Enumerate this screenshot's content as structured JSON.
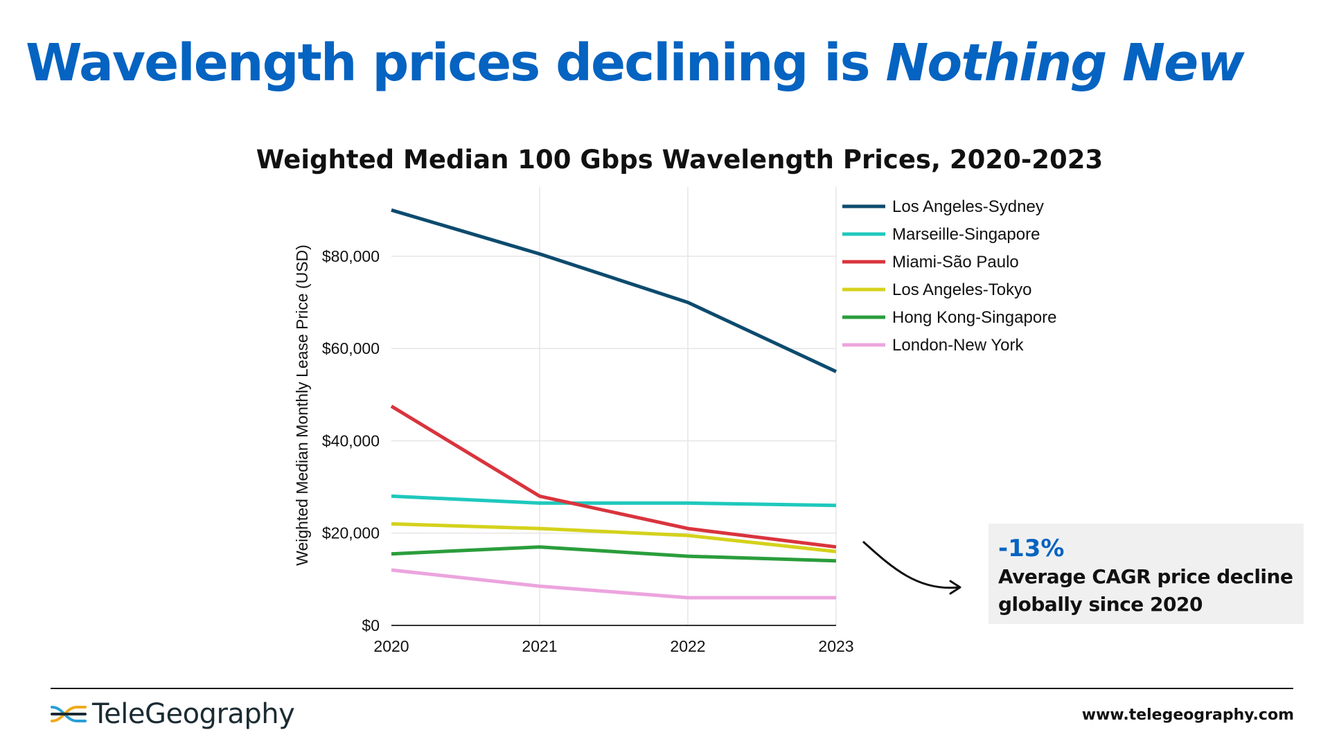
{
  "headline": {
    "main": "Wavelength prices declining is ",
    "emphasis": "Nothing New",
    "color": "#0563c1"
  },
  "chart_data": {
    "type": "line",
    "title": "Weighted Median 100 Gbps Wavelength Prices, 2020-2023",
    "xlabel": "",
    "ylabel": "Weighted Median Monthly Lease Price (USD)",
    "x": [
      "2020",
      "2021",
      "2022",
      "2023"
    ],
    "ylim": [
      0,
      95000
    ],
    "yticks": [
      0,
      20000,
      40000,
      60000,
      80000
    ],
    "ytick_labels": [
      "$0",
      "$20,000",
      "$40,000",
      "$60,000",
      "$80,000"
    ],
    "grid": true,
    "legend_position": "top-right",
    "series": [
      {
        "name": "Los Angeles-Sydney",
        "color": "#0d4b6e",
        "values": [
          90000,
          80500,
          70000,
          55000
        ]
      },
      {
        "name": "Marseille-Singapore",
        "color": "#1fc8bd",
        "values": [
          28000,
          26500,
          26500,
          26000
        ]
      },
      {
        "name": "Miami-São Paulo",
        "color": "#d9343d",
        "values": [
          47500,
          28000,
          21000,
          17000
        ]
      },
      {
        "name": "Los Angeles-Tokyo",
        "color": "#d4d21c",
        "values": [
          22000,
          21000,
          19500,
          16000
        ]
      },
      {
        "name": "Hong Kong-Singapore",
        "color": "#2a9d3c",
        "values": [
          15500,
          17000,
          15000,
          14000
        ]
      },
      {
        "name": "London-New York",
        "color": "#eca4dd",
        "values": [
          12000,
          8500,
          6000,
          6000
        ]
      }
    ]
  },
  "callout": {
    "value": "-13%",
    "line1": "Average CAGR price decline",
    "line2": "globally since 2020"
  },
  "footer": {
    "brand": "TeleGeography",
    "website": "www.telegeography.com"
  }
}
